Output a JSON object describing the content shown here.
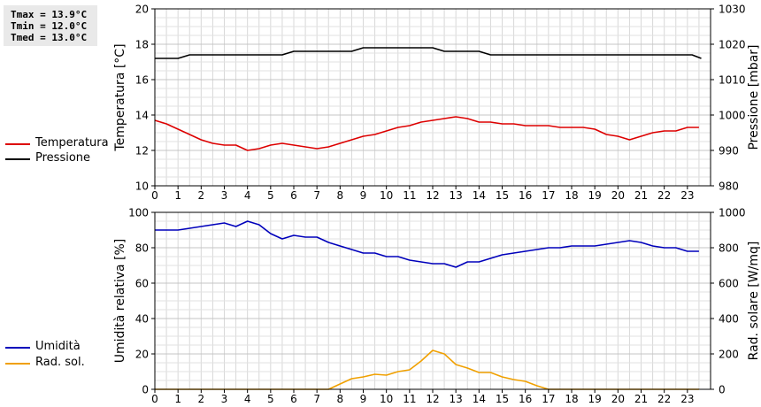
{
  "stats": {
    "tmax": "Tmax = 13.9°C",
    "tmin": "Tmin = 12.0°C",
    "tmed": "Tmed = 13.0°C"
  },
  "legend_top": [
    {
      "label": "Temperatura",
      "color": "#dd0000"
    },
    {
      "label": "Pressione",
      "color": "#000000"
    }
  ],
  "legend_bottom": [
    {
      "label": "Umidità",
      "color": "#0000bb"
    },
    {
      "label": "Rad. sol.",
      "color": "#f0a000"
    }
  ],
  "chart_data": [
    {
      "type": "line",
      "xlim": [
        0,
        24
      ],
      "xticks": [
        "0",
        "1",
        "2",
        "3",
        "4",
        "5",
        "6",
        "7",
        "8",
        "9",
        "10",
        "11",
        "12",
        "13",
        "14",
        "15",
        "16",
        "17",
        "18",
        "19",
        "20",
        "21",
        "22",
        "23"
      ],
      "ylabel": "Temperatura [°C]",
      "ylim": [
        10,
        20
      ],
      "yticks": [
        "10",
        "12",
        "14",
        "16",
        "18",
        "20"
      ],
      "ylabel_right": "Pressione [mbar]",
      "ylim_right": [
        980,
        1030
      ],
      "yticks_right": [
        "980",
        "990",
        "1000",
        "1010",
        "1020",
        "1030"
      ],
      "grid": true,
      "series": [
        {
          "name": "Temperatura",
          "color": "#dd0000",
          "axis": "left",
          "x": [
            0,
            0.5,
            1,
            1.5,
            2,
            2.5,
            3,
            3.5,
            4,
            4.5,
            5,
            5.5,
            6,
            6.5,
            7,
            7.5,
            8,
            8.5,
            9,
            9.5,
            10,
            10.5,
            11,
            11.5,
            12,
            12.5,
            13,
            13.5,
            14,
            14.5,
            15,
            15.5,
            16,
            16.5,
            17,
            17.5,
            18,
            18.5,
            19,
            19.5,
            20,
            20.5,
            21,
            21.5,
            22,
            22.5,
            23,
            23.5
          ],
          "y": [
            13.7,
            13.5,
            13.2,
            12.9,
            12.6,
            12.4,
            12.3,
            12.3,
            12.0,
            12.1,
            12.3,
            12.4,
            12.3,
            12.2,
            12.1,
            12.2,
            12.4,
            12.6,
            12.8,
            12.9,
            13.1,
            13.3,
            13.4,
            13.6,
            13.7,
            13.8,
            13.9,
            13.8,
            13.6,
            13.6,
            13.5,
            13.5,
            13.4,
            13.4,
            13.4,
            13.3,
            13.3,
            13.3,
            13.2,
            12.9,
            12.8,
            12.6,
            12.8,
            13.0,
            13.1,
            13.1,
            13.3,
            13.3
          ]
        },
        {
          "name": "Pressione",
          "color": "#000000",
          "axis": "right",
          "x": [
            0,
            1,
            1.5,
            5.5,
            6,
            8.5,
            9,
            12,
            12.5,
            14,
            14.5,
            23.2,
            23.6
          ],
          "y": [
            1016,
            1016,
            1017,
            1017,
            1018,
            1018,
            1019,
            1019,
            1018,
            1018,
            1017,
            1017,
            1016
          ]
        }
      ]
    },
    {
      "type": "line",
      "xlim": [
        0,
        24
      ],
      "xticks": [
        "0",
        "1",
        "2",
        "3",
        "4",
        "5",
        "6",
        "7",
        "8",
        "9",
        "10",
        "11",
        "12",
        "13",
        "14",
        "15",
        "16",
        "17",
        "18",
        "19",
        "20",
        "21",
        "22",
        "23"
      ],
      "ylabel": "Umidità relativa [%]",
      "ylim": [
        0,
        100
      ],
      "yticks": [
        "0",
        "20",
        "40",
        "60",
        "80",
        "100"
      ],
      "ylabel_right": "Rad. solare [W/mq]",
      "ylim_right": [
        0,
        1000
      ],
      "yticks_right": [
        "0",
        "200",
        "400",
        "600",
        "800",
        "1000"
      ],
      "grid": true,
      "series": [
        {
          "name": "Umidità",
          "color": "#0000bb",
          "axis": "left",
          "x": [
            0,
            0.5,
            1,
            1.5,
            2,
            2.5,
            3,
            3.5,
            4,
            4.5,
            5,
            5.5,
            6,
            6.5,
            7,
            7.5,
            8,
            8.5,
            9,
            9.5,
            10,
            10.5,
            11,
            11.5,
            12,
            12.5,
            13,
            13.5,
            14,
            14.5,
            15,
            15.5,
            16,
            16.5,
            17,
            17.5,
            18,
            18.5,
            19,
            19.5,
            20,
            20.5,
            21,
            21.5,
            22,
            22.5,
            23,
            23.5
          ],
          "y": [
            90,
            90,
            90,
            91,
            92,
            93,
            94,
            92,
            95,
            93,
            88,
            85,
            87,
            86,
            86,
            83,
            81,
            79,
            77,
            77,
            75,
            75,
            73,
            72,
            71,
            71,
            69,
            72,
            72,
            74,
            76,
            77,
            78,
            79,
            80,
            80,
            81,
            81,
            81,
            82,
            83,
            84,
            83,
            81,
            80,
            80,
            78,
            78
          ]
        },
        {
          "name": "Rad. sol.",
          "color": "#f0a000",
          "axis": "right",
          "x": [
            0,
            7.5,
            8,
            8.5,
            9,
            9.5,
            10,
            10.5,
            11,
            11.5,
            12,
            12.5,
            13,
            13.5,
            14,
            14.5,
            15,
            15.5,
            16,
            16.5,
            17,
            23.5
          ],
          "y": [
            0,
            0,
            30,
            60,
            70,
            85,
            80,
            100,
            110,
            160,
            220,
            200,
            140,
            120,
            95,
            95,
            70,
            55,
            45,
            20,
            0,
            0
          ]
        }
      ]
    }
  ]
}
